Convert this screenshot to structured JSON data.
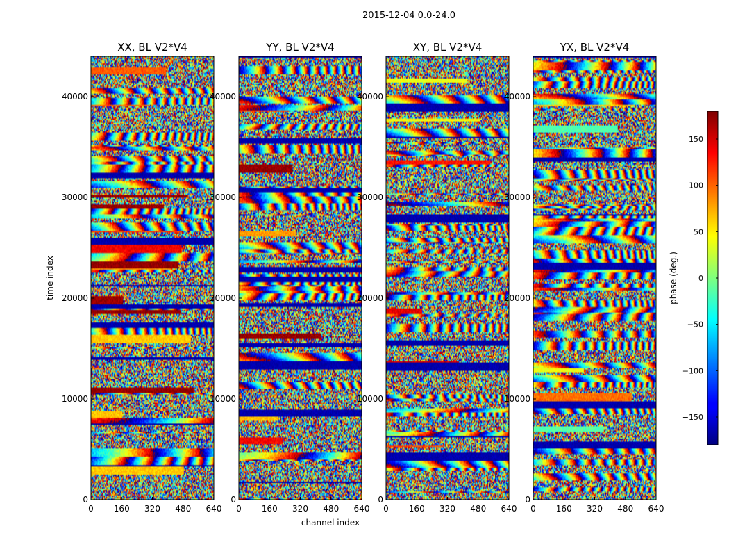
{
  "figure_title": "2015-12-04 0.0-24.0",
  "chart_data": {
    "type": "heatmap",
    "xlabel": "channel index",
    "ylabel": "time index",
    "xlim": [
      0,
      640
    ],
    "ylim": [
      0,
      44000
    ],
    "xticks": [
      0,
      160,
      320,
      480,
      640
    ],
    "yticks": [
      0,
      10000,
      20000,
      30000,
      40000
    ],
    "colormap": "jet",
    "colorbar": {
      "label": "phase (deg.)",
      "range": [
        -180,
        180
      ],
      "ticks": [
        -150,
        -100,
        -50,
        0,
        50,
        100,
        150
      ],
      "tick_labels": [
        "−150",
        "−100",
        "−50",
        "0",
        "50",
        "100",
        "150"
      ],
      "dotted_caption": "....."
    },
    "panels": [
      {
        "title": "XX, BL V2*V4",
        "seed": 11,
        "bias": 1
      },
      {
        "title": "YY, BL V2*V4",
        "seed": 23,
        "bias": 1
      },
      {
        "title": "XY, BL V2*V4",
        "seed": 37,
        "bias": 0
      },
      {
        "title": "YX, BL V2*V4",
        "seed": 51,
        "bias": 0
      }
    ]
  }
}
